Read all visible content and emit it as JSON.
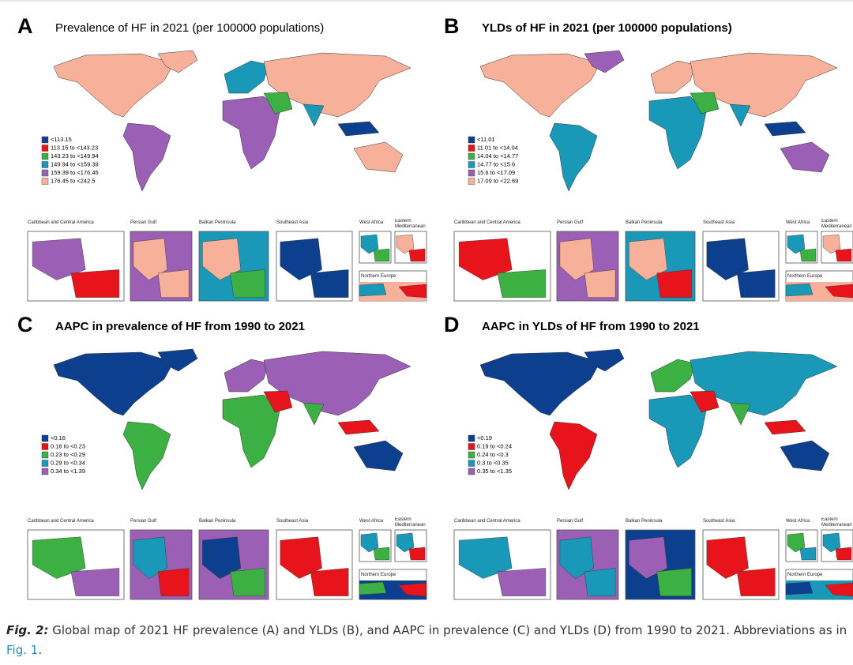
{
  "panels": [
    {
      "letter": "A",
      "title": "Prevalence of HF in 2021 (per 100000 populations)",
      "legend": [
        {
          "label": "<113.15",
          "color": "#0d3f8f"
        },
        {
          "label": "113.15 to <143.23",
          "color": "#e8141c"
        },
        {
          "label": "143.23 to <149.94",
          "color": "#3cb043"
        },
        {
          "label": "149.94 to <159.39",
          "color": "#1998b8"
        },
        {
          "label": "159.39 to <176.45",
          "color": "#9b5fb5"
        },
        {
          "label": "176.45 to <242.5",
          "color": "#f7b09a"
        }
      ],
      "insets": [
        "Caribbean and Central America",
        "Persian Gulf",
        "Balkan Peninsula",
        "Southeast Asia",
        "West Africa",
        "Eastern Mediterranean",
        "Northern Europe"
      ]
    },
    {
      "letter": "B",
      "title": "YLDs of HF in 2021 (per 100000 populations)",
      "legend": [
        {
          "label": "<11.01",
          "color": "#0d3f8f"
        },
        {
          "label": "11.01 to <14.04",
          "color": "#e8141c"
        },
        {
          "label": "14.04 to <14.77",
          "color": "#3cb043"
        },
        {
          "label": "14.77 to <15.6",
          "color": "#1998b8"
        },
        {
          "label": "15.6 to <17.09",
          "color": "#9b5fb5"
        },
        {
          "label": "17.09 to <22.69",
          "color": "#f7b09a"
        }
      ],
      "insets": [
        "Caribbean and Central America",
        "Persian Gulf",
        "Balkan Peninsula",
        "Southeast Asia",
        "West Africa",
        "Eastern Mediterranean",
        "Northern Europe"
      ]
    },
    {
      "letter": "C",
      "title": "AAPC in prevalence of HF from 1990 to 2021",
      "legend": [
        {
          "label": "<0.16",
          "color": "#0d3f8f"
        },
        {
          "label": "0.16 to <0.23",
          "color": "#e8141c"
        },
        {
          "label": "0.23 to <0.29",
          "color": "#3cb043"
        },
        {
          "label": "0.29 to <0.34",
          "color": "#1998b8"
        },
        {
          "label": "0.34 to <1.39",
          "color": "#9b5fb5"
        }
      ],
      "insets": [
        "Caribbean and Central America",
        "Persian Gulf",
        "Balkan Peninsula",
        "Southeast Asia",
        "West Africa",
        "Eastern Mediterranean",
        "Northern Europe"
      ]
    },
    {
      "letter": "D",
      "title": "AAPC in YLDs of HF from 1990 to 2021",
      "legend": [
        {
          "label": "<0.19",
          "color": "#0d3f8f"
        },
        {
          "label": "0.19 to <0.24",
          "color": "#e8141c"
        },
        {
          "label": "0.24 to <0.3",
          "color": "#3cb043"
        },
        {
          "label": "0.3 to <0.35",
          "color": "#1998b8"
        },
        {
          "label": "0.35 to <1.35",
          "color": "#9b5fb5"
        }
      ],
      "insets": [
        "Caribbean and Central America",
        "Persian Gulf",
        "Balkan Peninsula",
        "Southeast Asia",
        "West Africa",
        "Eastern Mediterranean",
        "Northern Europe"
      ]
    }
  ],
  "caption": {
    "label": "Fig. 2:",
    "text": "Global map of 2021 HF prevalence (A) and YLDs (B), and AAPC in prevalence (C) and YLDs (D) from 1990 to 2021. Abbreviations as in",
    "link": "Fig. 1",
    "end": "."
  }
}
